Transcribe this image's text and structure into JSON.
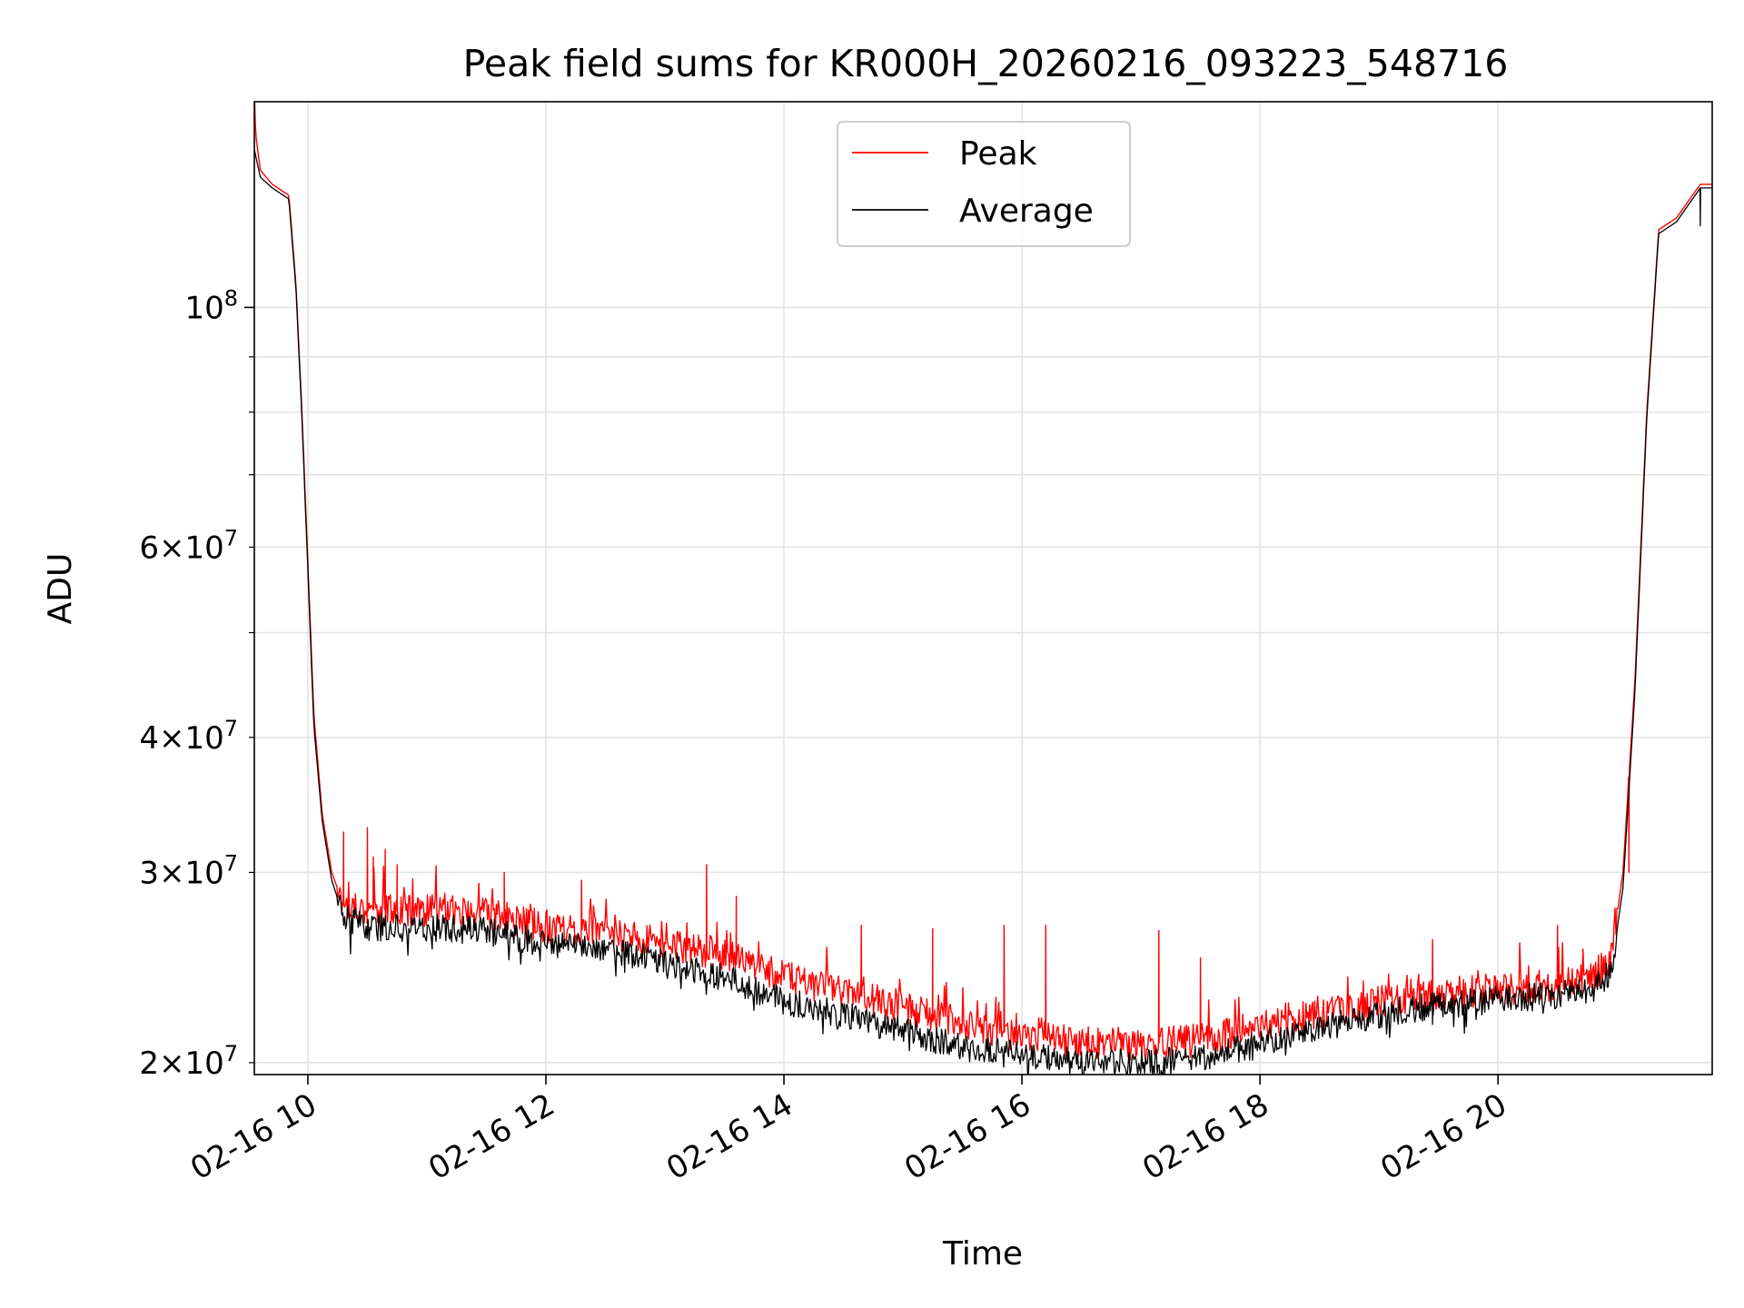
{
  "chart_data": {
    "type": "line",
    "title": "Peak field sums for KR000H_20260216_093223_548716",
    "xlabel": "Time",
    "ylabel": "ADU",
    "yscale": "log",
    "xlim_hours": [
      9.55,
      21.8
    ],
    "ylim": [
      19500000,
      155000000
    ],
    "grid": true,
    "legend_position": "upper center",
    "x_ticks": [
      {
        "hour": 10,
        "label": "02-16 10"
      },
      {
        "hour": 12,
        "label": "02-16 12"
      },
      {
        "hour": 14,
        "label": "02-16 14"
      },
      {
        "hour": 16,
        "label": "02-16 16"
      },
      {
        "hour": 18,
        "label": "02-16 18"
      },
      {
        "hour": 20,
        "label": "02-16 20"
      }
    ],
    "y_major_ticks": [
      {
        "value": 100000000,
        "base": "10",
        "exp": "8"
      }
    ],
    "y_minor_ticks": [
      {
        "value": 20000000,
        "mant": "2",
        "base": "10",
        "exp": "7"
      },
      {
        "value": 30000000,
        "mant": "3",
        "base": "10",
        "exp": "7"
      },
      {
        "value": 40000000,
        "mant": "4",
        "base": "10",
        "exp": "7"
      },
      {
        "value": 50000000
      },
      {
        "value": 60000000,
        "mant": "6",
        "base": "10",
        "exp": "7"
      },
      {
        "value": 70000000
      },
      {
        "value": 80000000
      },
      {
        "value": 90000000
      }
    ],
    "series": [
      {
        "name": "Peak",
        "color": "#ff0000",
        "baseline": [
          [
            9.55,
            160000000
          ],
          [
            9.56,
            145000000
          ],
          [
            9.6,
            134000000
          ],
          [
            9.7,
            130000000
          ],
          [
            9.84,
            127000000
          ],
          [
            9.9,
            105000000
          ],
          [
            9.95,
            80000000
          ],
          [
            10.0,
            58000000
          ],
          [
            10.05,
            42000000
          ],
          [
            10.12,
            34000000
          ],
          [
            10.2,
            30000000
          ],
          [
            10.3,
            28000000
          ],
          [
            10.5,
            27700000
          ],
          [
            11.0,
            27700000
          ],
          [
            11.5,
            27500000
          ],
          [
            12.0,
            26700000
          ],
          [
            12.5,
            26400000
          ],
          [
            13.0,
            25800000
          ],
          [
            13.5,
            25200000
          ],
          [
            14.0,
            24000000
          ],
          [
            14.5,
            23300000
          ],
          [
            15.0,
            22500000
          ],
          [
            15.5,
            21700000
          ],
          [
            16.0,
            21200000
          ],
          [
            16.5,
            20900000
          ],
          [
            17.0,
            20800000
          ],
          [
            17.5,
            21000000
          ],
          [
            18.0,
            21600000
          ],
          [
            18.5,
            22200000
          ],
          [
            19.0,
            22800000
          ],
          [
            19.5,
            23100000
          ],
          [
            20.0,
            23400000
          ],
          [
            20.5,
            23600000
          ],
          [
            20.8,
            24000000
          ],
          [
            20.95,
            25000000
          ],
          [
            21.05,
            30000000
          ],
          [
            21.15,
            45000000
          ],
          [
            21.25,
            80000000
          ],
          [
            21.35,
            118000000
          ],
          [
            21.5,
            121000000
          ],
          [
            21.7,
            130000000
          ],
          [
            21.8,
            130000000
          ]
        ],
        "spikes": [
          [
            10.3,
            32700000
          ],
          [
            10.5,
            33000000
          ],
          [
            10.55,
            31000000
          ],
          [
            10.65,
            31500000
          ],
          [
            10.75,
            30500000
          ],
          [
            11.65,
            30000000
          ],
          [
            12.3,
            29500000
          ],
          [
            13.35,
            30500000
          ],
          [
            13.6,
            28500000
          ],
          [
            14.65,
            26800000
          ],
          [
            15.25,
            26600000
          ],
          [
            15.85,
            26800000
          ],
          [
            16.2,
            26800000
          ],
          [
            17.15,
            26500000
          ],
          [
            17.5,
            25000000
          ],
          [
            19.45,
            26000000
          ],
          [
            20.5,
            26800000
          ],
          [
            21.1,
            30000000
          ]
        ],
        "noise_amplitude": 0.035
      },
      {
        "name": "Average",
        "color": "#000000",
        "baseline": [
          [
            9.55,
            140000000
          ],
          [
            9.6,
            132000000
          ],
          [
            9.7,
            129000000
          ],
          [
            9.84,
            126000000
          ],
          [
            9.9,
            104000000
          ],
          [
            9.95,
            79000000
          ],
          [
            10.0,
            57000000
          ],
          [
            10.05,
            41000000
          ],
          [
            10.12,
            33500000
          ],
          [
            10.2,
            29500000
          ],
          [
            10.3,
            27300000
          ],
          [
            10.5,
            26700000
          ],
          [
            11.0,
            26700000
          ],
          [
            11.5,
            26500000
          ],
          [
            12.0,
            25800000
          ],
          [
            12.5,
            25600000
          ],
          [
            13.0,
            24700000
          ],
          [
            13.5,
            24000000
          ],
          [
            14.0,
            22800000
          ],
          [
            14.5,
            22200000
          ],
          [
            15.0,
            21400000
          ],
          [
            15.5,
            20700000
          ],
          [
            16.0,
            20300000
          ],
          [
            16.5,
            20000000
          ],
          [
            17.0,
            20000000
          ],
          [
            17.5,
            20200000
          ],
          [
            18.0,
            20800000
          ],
          [
            18.5,
            21500000
          ],
          [
            19.0,
            22200000
          ],
          [
            19.5,
            22600000
          ],
          [
            20.0,
            22900000
          ],
          [
            20.5,
            23100000
          ],
          [
            20.8,
            23400000
          ],
          [
            20.95,
            24300000
          ],
          [
            21.05,
            29000000
          ],
          [
            21.15,
            44000000
          ],
          [
            21.25,
            79000000
          ],
          [
            21.35,
            117000000
          ],
          [
            21.5,
            120000000
          ],
          [
            21.7,
            129000000
          ],
          [
            21.8,
            129000000
          ]
        ],
        "dips": [
          [
            17.2,
            19500000
          ],
          [
            19.45,
            21700000
          ],
          [
            21.7,
            119000000
          ]
        ],
        "noise_amplitude": 0.03
      }
    ]
  }
}
